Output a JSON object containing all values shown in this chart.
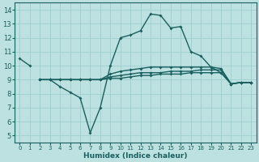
{
  "xlabel": "Humidex (Indice chaleur)",
  "xlim": [
    -0.5,
    23.5
  ],
  "ylim": [
    4.5,
    14.5
  ],
  "xticks": [
    0,
    1,
    2,
    3,
    4,
    5,
    6,
    7,
    8,
    9,
    10,
    11,
    12,
    13,
    14,
    15,
    16,
    17,
    18,
    19,
    20,
    21,
    22,
    23
  ],
  "yticks": [
    5,
    6,
    7,
    8,
    9,
    10,
    11,
    12,
    13,
    14
  ],
  "bg_color": "#bde0e0",
  "grid_color": "#9ecece",
  "line_color": "#1a6060",
  "lines": [
    {
      "x": [
        0,
        1,
        2,
        3,
        4,
        5,
        6,
        7,
        8,
        9,
        10,
        11,
        12,
        13,
        14,
        15,
        16,
        17,
        18,
        19,
        20,
        21,
        22,
        23
      ],
      "y": [
        10.5,
        10.0,
        null,
        9.0,
        8.5,
        8.1,
        7.7,
        5.2,
        7.0,
        10.0,
        12.0,
        12.2,
        12.5,
        13.7,
        13.6,
        12.7,
        12.8,
        11.0,
        10.7,
        9.9,
        9.5,
        8.7,
        8.8,
        8.8
      ]
    },
    {
      "x": [
        2,
        3,
        4,
        5,
        6,
        7,
        8,
        9,
        10,
        11,
        12,
        13,
        14,
        15,
        16,
        17,
        18,
        19,
        20,
        21,
        22,
        23
      ],
      "y": [
        9.0,
        9.0,
        9.0,
        9.0,
        9.0,
        9.0,
        9.0,
        9.1,
        9.1,
        9.2,
        9.3,
        9.3,
        9.4,
        9.4,
        9.4,
        9.5,
        9.5,
        9.5,
        9.5,
        8.7,
        8.8,
        8.8
      ]
    },
    {
      "x": [
        2,
        3,
        4,
        5,
        6,
        7,
        8,
        9,
        10,
        11,
        12,
        13,
        14,
        15,
        16,
        17,
        18,
        19,
        20,
        21,
        22,
        23
      ],
      "y": [
        9.0,
        9.0,
        9.0,
        9.0,
        9.0,
        9.0,
        9.0,
        9.2,
        9.3,
        9.4,
        9.5,
        9.5,
        9.5,
        9.6,
        9.6,
        9.6,
        9.7,
        9.7,
        9.7,
        8.7,
        8.8,
        8.8
      ]
    },
    {
      "x": [
        2,
        3,
        4,
        5,
        6,
        7,
        8,
        9,
        10,
        11,
        12,
        13,
        14,
        15,
        16,
        17,
        18,
        19,
        20,
        21,
        22,
        23
      ],
      "y": [
        9.0,
        9.0,
        9.0,
        9.0,
        9.0,
        9.0,
        9.0,
        9.4,
        9.6,
        9.7,
        9.8,
        9.9,
        9.9,
        9.9,
        9.9,
        9.9,
        9.9,
        9.9,
        9.8,
        8.7,
        8.8,
        8.8
      ]
    }
  ]
}
